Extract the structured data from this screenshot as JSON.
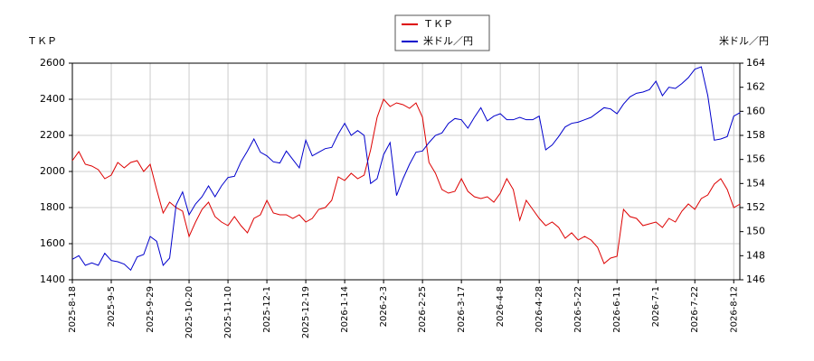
{
  "chart_data": {
    "type": "line",
    "y_label": "ＴＫＰ",
    "y2_label": "米ドル／円",
    "categories": [
      "2025-8-18",
      null,
      null,
      null,
      null,
      null,
      "2025-9-5",
      null,
      null,
      null,
      null,
      null,
      "2025-9-29",
      null,
      null,
      null,
      null,
      null,
      "2025-10-20",
      null,
      null,
      null,
      null,
      null,
      "2025-11-10",
      null,
      null,
      null,
      null,
      null,
      "2025-12-1",
      null,
      null,
      null,
      null,
      null,
      "2025-12-19",
      null,
      null,
      null,
      null,
      null,
      "2026-1-14",
      null,
      null,
      null,
      null,
      null,
      "2026-2-3",
      null,
      null,
      null,
      null,
      null,
      "2026-2-25",
      null,
      null,
      null,
      null,
      null,
      "2026-3-17",
      null,
      null,
      null,
      null,
      null,
      "2026-4-8",
      null,
      null,
      null,
      null,
      null,
      "2026-4-28",
      null,
      null,
      null,
      null,
      null,
      "2026-5-22",
      null,
      null,
      null,
      null,
      null,
      "2026-6-11",
      null,
      null,
      null,
      null,
      null,
      "2026-7-1",
      null,
      null,
      null,
      null,
      null,
      "2026-7-22",
      null,
      null,
      null,
      null,
      null,
      "2026-8-12",
      null
    ],
    "series": [
      {
        "name": "ＴＫＰ",
        "color": "#dd0000",
        "values": [
          2060,
          2110,
          2040,
          2030,
          2010,
          1960,
          1980,
          2050,
          2020,
          2050,
          2060,
          2000,
          2040,
          1900,
          1770,
          1830,
          1800,
          1780,
          1640,
          1720,
          1790,
          1830,
          1750,
          1720,
          1700,
          1750,
          1700,
          1660,
          1740,
          1760,
          1840,
          1770,
          1760,
          1760,
          1740,
          1760,
          1720,
          1740,
          1790,
          1800,
          1840,
          1970,
          1950,
          1990,
          1960,
          1980,
          2120,
          2300,
          2400,
          2360,
          2380,
          2370,
          2350,
          2380,
          2300,
          2050,
          1990,
          1900,
          1880,
          1890,
          1960,
          1890,
          1860,
          1850,
          1860,
          1830,
          1880,
          1960,
          1900,
          1730,
          1840,
          1790,
          1740,
          1700,
          1720,
          1690,
          1630,
          1660,
          1620,
          1640,
          1620,
          1580,
          1490,
          1520,
          1530,
          1790,
          1750,
          1740,
          1700,
          1710,
          1720,
          1690,
          1740,
          1720,
          1780,
          1820,
          1790,
          1850,
          1870,
          1930,
          1960,
          1900,
          1800,
          1820
        ]
      },
      {
        "name": "米ドル／円",
        "color": "#0000cc",
        "axis": "y2",
        "values": [
          147.7,
          148.0,
          147.2,
          147.4,
          147.2,
          148.2,
          147.6,
          147.5,
          147.3,
          146.8,
          147.9,
          148.1,
          149.6,
          149.2,
          147.2,
          147.8,
          152.2,
          153.3,
          151.4,
          152.3,
          152.9,
          153.8,
          152.9,
          153.8,
          154.5,
          154.6,
          155.8,
          156.7,
          157.7,
          156.6,
          156.3,
          155.8,
          155.7,
          156.7,
          156.0,
          155.3,
          157.6,
          156.3,
          156.6,
          156.9,
          157.0,
          158.1,
          159.0,
          158.0,
          158.4,
          158.0,
          154.0,
          154.4,
          156.4,
          157.4,
          153.0,
          154.4,
          155.6,
          156.6,
          156.7,
          157.4,
          158.0,
          158.2,
          159.0,
          159.4,
          159.3,
          158.6,
          159.5,
          160.3,
          159.2,
          159.6,
          159.8,
          159.3,
          159.3,
          159.5,
          159.3,
          159.3,
          159.6,
          156.8,
          157.2,
          157.9,
          158.7,
          159.0,
          159.1,
          159.3,
          159.5,
          159.9,
          160.3,
          160.2,
          159.8,
          160.6,
          161.2,
          161.5,
          161.6,
          161.8,
          162.5,
          161.3,
          162.0,
          161.9,
          162.3,
          162.8,
          163.5,
          163.7,
          161.3,
          157.6,
          157.7,
          157.9,
          159.6,
          159.9
        ]
      }
    ],
    "ylim": [
      1400,
      2600
    ],
    "yticks": [
      1400,
      1600,
      1800,
      2000,
      2200,
      2400,
      2600
    ],
    "y2lim": [
      146,
      164
    ],
    "y2ticks": [
      146,
      148,
      150,
      152,
      154,
      156,
      158,
      160,
      162,
      164
    ],
    "grid": true,
    "legend": "top"
  }
}
